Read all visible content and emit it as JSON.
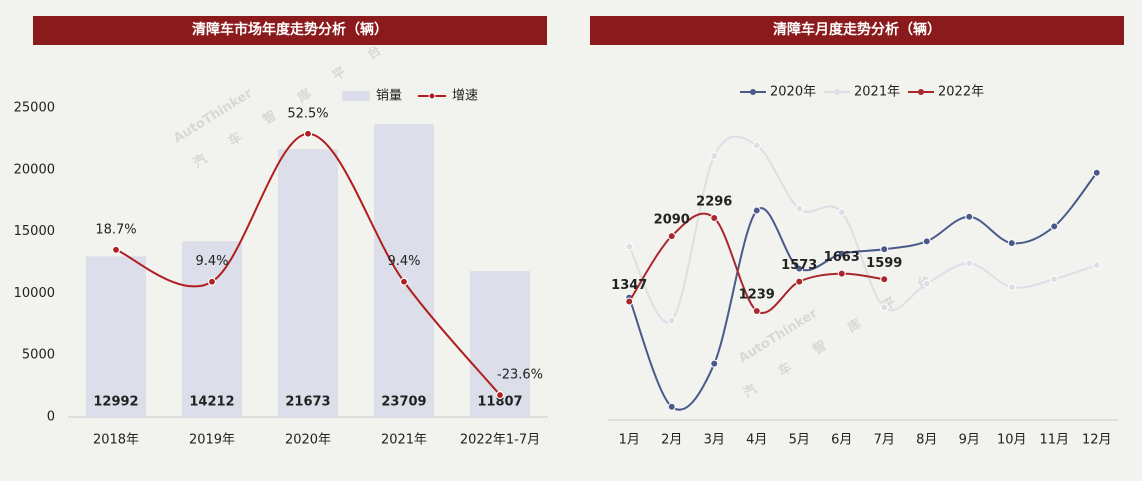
{
  "chart_data": [
    {
      "type": "bar",
      "title": "清障车市场年度走势分析（辆）",
      "categories": [
        "2018年",
        "2019年",
        "2020年",
        "2021年",
        "2022年1-7月"
      ],
      "series": [
        {
          "name": "销量",
          "type": "bar",
          "color": "#dcdee9",
          "values": [
            12992,
            14212,
            21673,
            23709,
            11807
          ]
        },
        {
          "name": "增速",
          "type": "line",
          "axis": "y2",
          "color": "#b01e1e",
          "values": [
            18.7,
            9.4,
            52.5,
            9.4,
            -23.6
          ],
          "value_labels": [
            "18.7%",
            "9.4%",
            "52.5%",
            "9.4%",
            "-23.6%"
          ]
        }
      ],
      "ylim": [
        0,
        25000
      ],
      "yticks": [
        0,
        5000,
        10000,
        15000,
        20000,
        25000
      ],
      "y2lim": [
        -30,
        60
      ]
    },
    {
      "type": "line",
      "title": "清障车月度走势分析（辆）",
      "categories": [
        "1月",
        "2月",
        "3月",
        "4月",
        "5月",
        "6月",
        "7月",
        "8月",
        "9月",
        "10月",
        "11月",
        "12月"
      ],
      "series": [
        {
          "name": "2020年",
          "color": "#4a5a8a",
          "values": [
            1390,
            150,
            640,
            2380,
            1720,
            1890,
            1940,
            2030,
            2310,
            2010,
            2200,
            2810
          ]
        },
        {
          "name": "2021年",
          "color": "#dcdfe6",
          "values": [
            1970,
            1130,
            3000,
            3120,
            2400,
            2360,
            1280,
            1550,
            1780,
            1510,
            1600,
            1760
          ]
        },
        {
          "name": "2022年",
          "color": "#a8282c",
          "values": [
            1347,
            2090,
            2296,
            1239,
            1573,
            1663,
            1599,
            null,
            null,
            null,
            null,
            null
          ],
          "data_labels": true
        }
      ],
      "ylim": [
        0,
        4000
      ]
    }
  ],
  "watermark": {
    "brand": "AutoThinker",
    "tagline": "汽车智库平台"
  }
}
